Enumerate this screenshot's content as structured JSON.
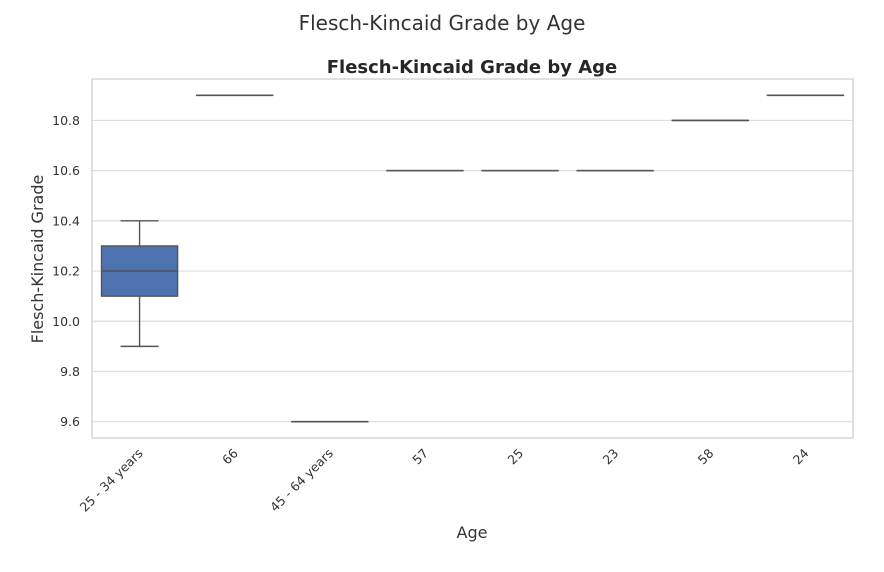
{
  "figure_title": "Flesch-Kincaid Grade by Age",
  "chart_data": {
    "type": "box",
    "title": "Flesch-Kincaid Grade by Age",
    "xlabel": "Age",
    "ylabel": "Flesch-Kincaid Grade",
    "categories": [
      "25 - 34 years",
      "66",
      "45 - 64 years",
      "57",
      "25",
      "23",
      "58",
      "24"
    ],
    "boxes": [
      {
        "category": "25 - 34 years",
        "min": 9.9,
        "q1": 10.1,
        "median": 10.2,
        "q3": 10.3,
        "max": 10.4
      },
      {
        "category": "66",
        "min": 10.9,
        "q1": 10.9,
        "median": 10.9,
        "q3": 10.9,
        "max": 10.9
      },
      {
        "category": "45 - 64 years",
        "min": 9.6,
        "q1": 9.6,
        "median": 9.6,
        "q3": 9.6,
        "max": 9.6
      },
      {
        "category": "57",
        "min": 10.6,
        "q1": 10.6,
        "median": 10.6,
        "q3": 10.6,
        "max": 10.6
      },
      {
        "category": "25",
        "min": 10.6,
        "q1": 10.6,
        "median": 10.6,
        "q3": 10.6,
        "max": 10.6
      },
      {
        "category": "23",
        "min": 10.6,
        "q1": 10.6,
        "median": 10.6,
        "q3": 10.6,
        "max": 10.6
      },
      {
        "category": "58",
        "min": 10.8,
        "q1": 10.8,
        "median": 10.8,
        "q3": 10.8,
        "max": 10.8
      },
      {
        "category": "24",
        "min": 10.9,
        "q1": 10.9,
        "median": 10.9,
        "q3": 10.9,
        "max": 10.9
      }
    ],
    "yticks": [
      "9.6",
      "9.8",
      "10.0",
      "10.2",
      "10.4",
      "10.6",
      "10.8"
    ],
    "ylim": [
      9.535,
      10.965
    ],
    "grid": true,
    "box_color": "#4c72b0",
    "line_color": "#555555",
    "grid_color": "#dddddd"
  }
}
